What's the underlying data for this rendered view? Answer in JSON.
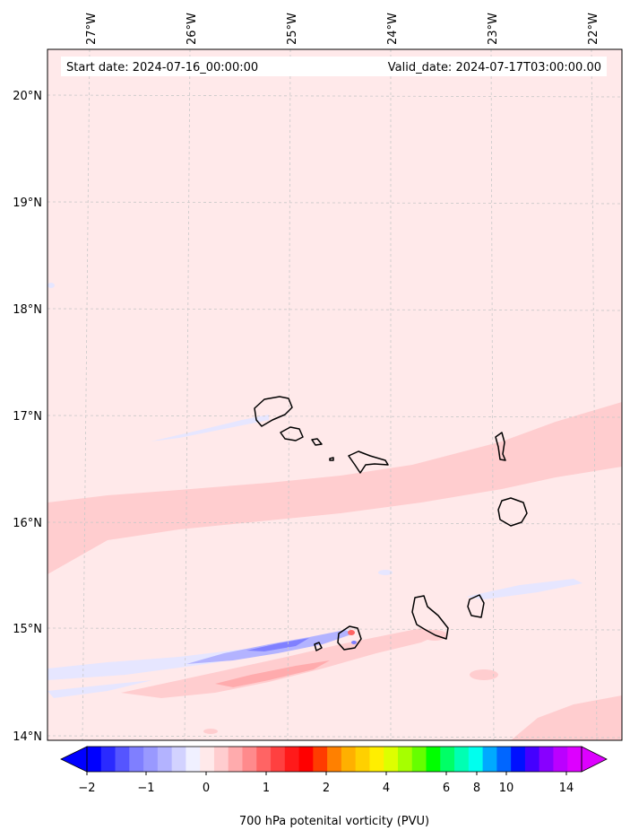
{
  "header": {
    "start_date": "Start date: 2024-07-16_00:00:00",
    "valid_date": "Valid_date: 2024-07-17T03:00:00.00"
  },
  "map": {
    "lon_labels": [
      "27°W",
      "26°W",
      "25°W",
      "24°W",
      "23°W",
      "22°W"
    ],
    "lat_labels": [
      "20°N",
      "19°N",
      "18°N",
      "17°N",
      "16°N",
      "15°N",
      "14°N"
    ],
    "colors": {
      "background": "#ffe9ea",
      "light_pos": "#ffcdcf",
      "mid_pos": "#ffabad",
      "light_neg": "#e6e6ff",
      "mid_neg": "#b3b3ff",
      "strong_neg": "#8080ff"
    }
  },
  "colorbar": {
    "label": "700 hPa potenital vorticity (PVU)",
    "tick_labels": [
      "−2",
      "−1",
      "0",
      "1",
      "2",
      "4",
      "6",
      "8",
      "10",
      "14"
    ],
    "colors": [
      "#0000ff",
      "#2a2aff",
      "#5555ff",
      "#7f7fff",
      "#9999ff",
      "#b3b3ff",
      "#d2d2ff",
      "#f0f0ff",
      "#ffe9ea",
      "#ffcdcf",
      "#ffabad",
      "#ff8a8c",
      "#ff6464",
      "#ff4040",
      "#ff1a1a",
      "#ff0000",
      "#ff3c00",
      "#ff8000",
      "#ffb000",
      "#ffd000",
      "#ffee00",
      "#ddff00",
      "#a6ff00",
      "#66ff00",
      "#00ff00",
      "#00ff66",
      "#00ffb3",
      "#00ffee",
      "#00aaff",
      "#0066ff",
      "#0010ff",
      "#4400ff",
      "#8800ff",
      "#bb00ff",
      "#dd00ff"
    ]
  }
}
